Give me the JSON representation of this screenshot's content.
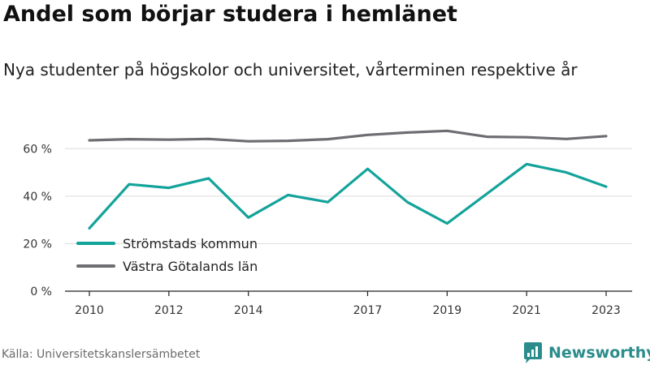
{
  "chart_data": {
    "type": "line",
    "title": "Andel som börjar studera i hemlänet",
    "subtitle": "Nya studenter på högskolor och universitet, vårterminen respektive år",
    "x": [
      2010,
      2011,
      2012,
      2013,
      2014,
      2015,
      2016,
      2017,
      2018,
      2019,
      2020,
      2021,
      2022,
      2023
    ],
    "x_tick_labels": [
      "2010",
      "2012",
      "2014",
      "2017",
      "2019",
      "2021",
      "2023"
    ],
    "y_ticks": [
      0,
      20,
      40,
      60
    ],
    "y_tick_labels": [
      "0 %",
      "20 %",
      "40 %",
      "60 %"
    ],
    "ylim": [
      0,
      70
    ],
    "grid": true,
    "legend_position": "bottom-left",
    "series": [
      {
        "name": "Strömstads kommun",
        "color": "#13a39a",
        "values": [
          26.5,
          45,
          43.5,
          47.5,
          31,
          40.5,
          37.5,
          51.5,
          37.5,
          28.5,
          41,
          53.5,
          50,
          44
        ]
      },
      {
        "name": "Västra Götalands län",
        "color": "#6d6d72",
        "values": [
          63.5,
          64,
          63.8,
          64.1,
          63.1,
          63.3,
          64,
          65.8,
          66.8,
          67.5,
          65,
          64.8,
          64.1,
          65.3
        ]
      }
    ]
  },
  "footer": {
    "source": "Källa: Universitetskanslersämbetet",
    "brand": "Newsworthy",
    "brand_icon": "newsworthy-logo-icon",
    "brand_color": "#2c8c8c"
  }
}
